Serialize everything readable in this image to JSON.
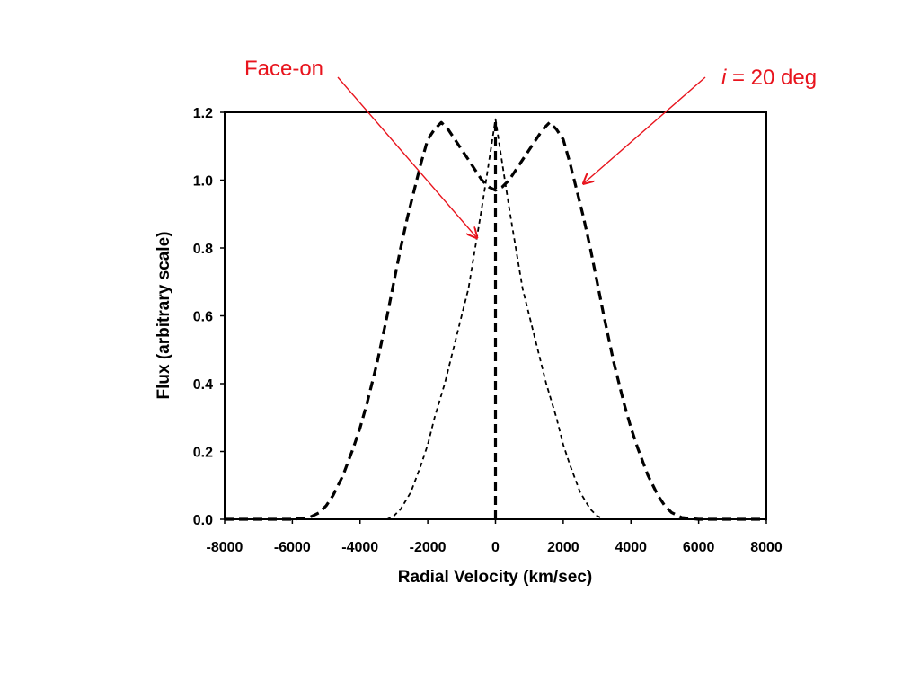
{
  "chart_data": {
    "type": "line",
    "title": "",
    "xlabel": "Radial Velocity (km/sec)",
    "ylabel": "Flux (arbitrary scale)",
    "xlim": [
      -8000,
      8000
    ],
    "ylim": [
      0,
      1.2
    ],
    "x_ticks": [
      -8000,
      -6000,
      -4000,
      -2000,
      0,
      2000,
      4000,
      6000,
      8000
    ],
    "x_tick_labels": [
      "-8000",
      "-6000",
      "-4000",
      "-2000",
      "0",
      "2000",
      "4000",
      "6000",
      "8000"
    ],
    "y_ticks": [
      0,
      0.2,
      0.4,
      0.6,
      0.8,
      1.0,
      1.2
    ],
    "y_tick_labels": [
      "0.0",
      "0.2",
      "0.4",
      "0.6",
      "0.8",
      "1.0",
      "1.2"
    ],
    "grid": false,
    "annotations": [
      {
        "text": "Face-on",
        "italic_prefix": "",
        "color": "#e8141d",
        "points_to": {
          "x": -550,
          "y": 0.83
        }
      },
      {
        "text": " = 20 deg",
        "italic_prefix": "i",
        "color": "#e8141d",
        "points_to": {
          "x": 2600,
          "y": 0.99
        }
      }
    ],
    "series": [
      {
        "style": "dashed-fine",
        "color": "#000000",
        "x": [
          -8000,
          -3200,
          -3000,
          -2800,
          -2500,
          -2200,
          -2000,
          -1800,
          -1500,
          -1200,
          -1000,
          -800,
          -600,
          -400,
          -200,
          0,
          200,
          400,
          600,
          800,
          1000,
          1200,
          1500,
          1800,
          2000,
          2200,
          2500,
          2800,
          3000,
          3200,
          8000
        ],
        "y": [
          0,
          0,
          0.01,
          0.03,
          0.08,
          0.16,
          0.22,
          0.3,
          0.4,
          0.52,
          0.6,
          0.68,
          0.8,
          0.92,
          1.05,
          1.18,
          1.05,
          0.92,
          0.8,
          0.68,
          0.6,
          0.52,
          0.4,
          0.3,
          0.22,
          0.16,
          0.08,
          0.03,
          0.01,
          0,
          0
        ]
      },
      {
        "style": "dashed-bold",
        "color": "#000000",
        "x": [
          -8000,
          -6000,
          -5500,
          -5200,
          -5000,
          -4800,
          -4500,
          -4200,
          -4000,
          -3800,
          -3500,
          -3200,
          -3000,
          -2800,
          -2600,
          -2400,
          -2200,
          -2000,
          -1800,
          -1600,
          -1400,
          -1200,
          -1000,
          -800,
          -600,
          -400,
          -200,
          0,
          200,
          400,
          600,
          800,
          1000,
          1200,
          1400,
          1600,
          1800,
          2000,
          2200,
          2400,
          2600,
          2800,
          3000,
          3200,
          3500,
          3800,
          4000,
          4200,
          4500,
          4800,
          5000,
          5200,
          5500,
          6000,
          8000
        ],
        "y": [
          0,
          0,
          0.005,
          0.02,
          0.04,
          0.07,
          0.13,
          0.21,
          0.27,
          0.34,
          0.46,
          0.6,
          0.7,
          0.8,
          0.89,
          0.97,
          1.05,
          1.12,
          1.15,
          1.17,
          1.15,
          1.12,
          1.09,
          1.06,
          1.03,
          1.0,
          0.98,
          0.97,
          0.98,
          1.0,
          1.03,
          1.06,
          1.09,
          1.12,
          1.15,
          1.17,
          1.15,
          1.12,
          1.05,
          0.97,
          0.89,
          0.8,
          0.7,
          0.6,
          0.46,
          0.34,
          0.27,
          0.21,
          0.13,
          0.07,
          0.04,
          0.02,
          0.005,
          0,
          0
        ]
      },
      {
        "style": "dashed-bold",
        "color": "#000000",
        "x": [
          0,
          0
        ],
        "y": [
          0,
          1.18
        ]
      }
    ]
  }
}
